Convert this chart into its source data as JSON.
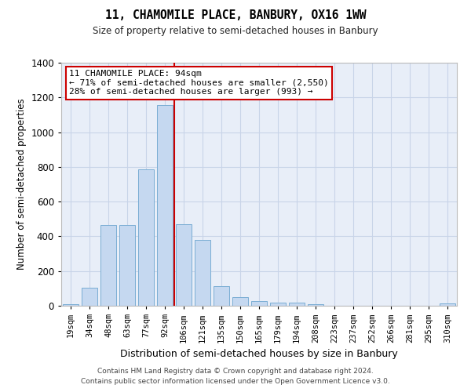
{
  "title": "11, CHAMOMILE PLACE, BANBURY, OX16 1WW",
  "subtitle": "Size of property relative to semi-detached houses in Banbury",
  "xlabel": "Distribution of semi-detached houses by size in Banbury",
  "ylabel": "Number of semi-detached properties",
  "bar_color": "#c5d8f0",
  "bar_edge_color": "#7aadd4",
  "grid_color": "#c8d4e8",
  "bg_color": "#e8eef8",
  "categories": [
    "19sqm",
    "34sqm",
    "48sqm",
    "63sqm",
    "77sqm",
    "92sqm",
    "106sqm",
    "121sqm",
    "135sqm",
    "150sqm",
    "165sqm",
    "179sqm",
    "194sqm",
    "208sqm",
    "223sqm",
    "237sqm",
    "252sqm",
    "266sqm",
    "281sqm",
    "295sqm",
    "310sqm"
  ],
  "values": [
    10,
    105,
    465,
    465,
    785,
    1155,
    470,
    380,
    115,
    50,
    25,
    20,
    20,
    10,
    0,
    0,
    0,
    0,
    0,
    0,
    15
  ],
  "property_bar_index": 5,
  "annotation_title": "11 CHAMOMILE PLACE: 94sqm",
  "annotation_line1": "← 71% of semi-detached houses are smaller (2,550)",
  "annotation_line2": "28% of semi-detached houses are larger (993) →",
  "vline_color": "#cc0000",
  "annotation_box_color": "#ffffff",
  "annotation_box_edge": "#cc0000",
  "ylim": [
    0,
    1400
  ],
  "yticks": [
    0,
    200,
    400,
    600,
    800,
    1000,
    1200,
    1400
  ],
  "footer1": "Contains HM Land Registry data © Crown copyright and database right 2024.",
  "footer2": "Contains public sector information licensed under the Open Government Licence v3.0."
}
